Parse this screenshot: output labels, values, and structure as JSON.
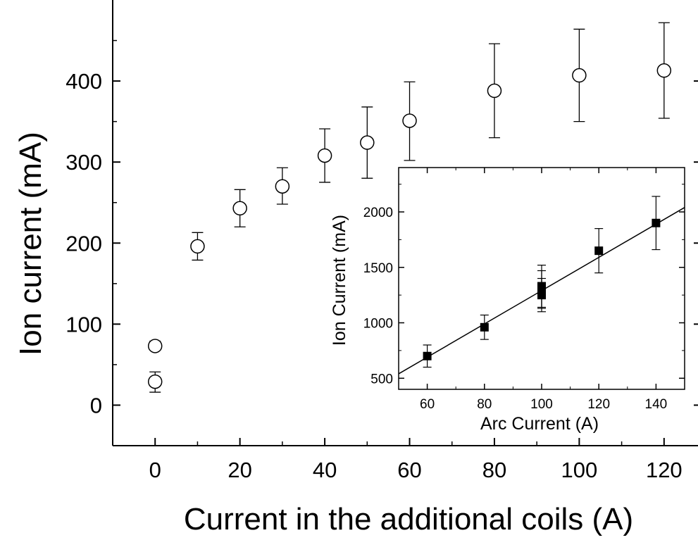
{
  "chart_data": [
    {
      "type": "scatter",
      "xlabel": "Current in the additional coils (A)",
      "ylabel": "Ion current (mA)",
      "xlim": [
        -10,
        128
      ],
      "ylim": [
        -50,
        500
      ],
      "xticks": [
        0,
        20,
        40,
        60,
        80,
        100,
        120
      ],
      "yticks": [
        0,
        100,
        200,
        300,
        400
      ],
      "marker": "open-circle",
      "series": [
        {
          "x": [
            0,
            0,
            10,
            20,
            30,
            40,
            50,
            60,
            80,
            100,
            120
          ],
          "y": [
            29,
            73,
            196,
            243,
            270,
            308,
            324,
            351,
            388,
            407,
            413
          ],
          "yerr_low": [
            13,
            5,
            17,
            23,
            22,
            33,
            44,
            49,
            58,
            57,
            59
          ],
          "yerr_high": [
            12,
            6,
            17,
            23,
            23,
            33,
            44,
            48,
            58,
            57,
            59
          ]
        }
      ]
    },
    {
      "type": "scatter",
      "inset": true,
      "xlabel": "Arc Current (A)",
      "ylabel": "Ion Current (mA)",
      "xlim": [
        50,
        150
      ],
      "ylim": [
        400,
        2400
      ],
      "xticks": [
        60,
        80,
        100,
        120,
        140
      ],
      "yticks": [
        500,
        1000,
        1500,
        2000
      ],
      "marker": "filled-square",
      "fit_line": {
        "x": [
          50,
          150
        ],
        "y": [
          540,
          2040
        ]
      },
      "series": [
        {
          "x": [
            60,
            80,
            100,
            100,
            100,
            120,
            140
          ],
          "y": [
            700,
            960,
            1250,
            1300,
            1330,
            1650,
            1900
          ],
          "yerr": [
            100,
            110,
            150,
            170,
            190,
            200,
            240
          ]
        }
      ]
    }
  ]
}
